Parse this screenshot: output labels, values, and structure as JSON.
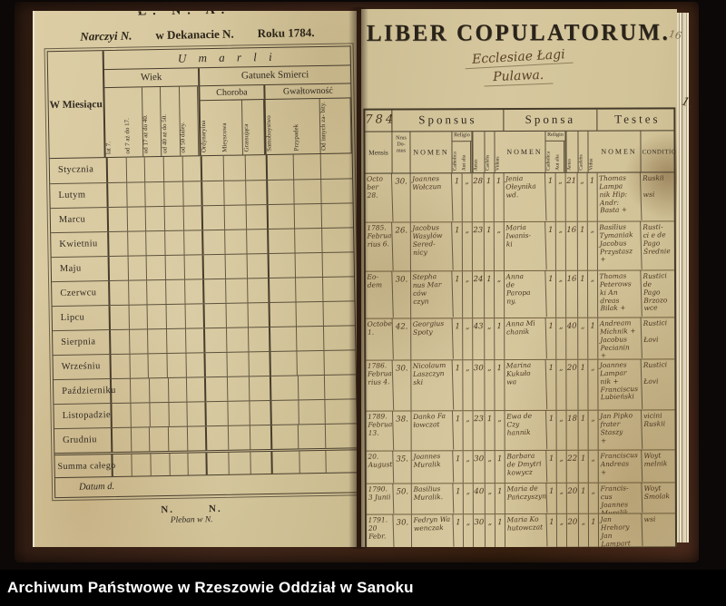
{
  "archive_bar": {
    "text": "Archiwum Państwowe w Rzeszowie Oddział w Sanoku"
  },
  "left_page": {
    "cropped_top_text": "Ł. N. A.",
    "header_line": {
      "parish": "Narczyi N.",
      "deanery": "w Dekanacie N.",
      "year": "Roku 1784."
    },
    "section_title": "U m a r l i",
    "month_column_header": "W Miesiącu",
    "age_group_label": "Wiek",
    "age_columns": [
      "lat 7.",
      "od 7 aż do 17.",
      "od 17 aż do 40.",
      "od 40 aż do 50.",
      "od 50 daley."
    ],
    "death_group_label": "Gatunek Smierci",
    "disease_label": "Choroba",
    "disease_columns": [
      "Ordynaryina",
      "Mieyscowa",
      "Grassująca"
    ],
    "violence_label": "Gwałtowność",
    "violence_columns": [
      "Samoboystwo",
      "Przypadek",
      "Od innych za- bity."
    ],
    "month_rows": [
      "Stycznia",
      "Lutym",
      "Marcu",
      "Kwietniu",
      "Maju",
      "Czerwcu",
      "Lipcu",
      "Sierpnia",
      "Wrześniu",
      "Październiku",
      "Listopadzie",
      "Grudniu",
      "Summa całego"
    ],
    "datum_label": "Datum d.",
    "signature_names": "N.        N.",
    "signature_title": "Pleban w N."
  },
  "right_page": {
    "title": "LIBER COPULATORUM.",
    "handwritten_parish": [
      "Ecclesiae Łagi",
      "Pulawa."
    ],
    "page_number": "16",
    "margin_mark": "1.",
    "year_cell": "784",
    "group_headers": [
      "Sponsus",
      "Sponsa",
      "Testes"
    ],
    "col_mensis": "Mensis",
    "col_domus": "Nrus\nDo-\nmus",
    "col_nomen": "NOMEN",
    "col_religio": "Religio",
    "col_catholica": "Catholica",
    "col_aut_alia": "Aut alia",
    "col_aetas": "Aetas",
    "col_caelebs": "Caelebs",
    "col_viduus": "Viduus",
    "col_vidua": "Vidua",
    "col_conditio": "CONDITIO",
    "entries": [
      {
        "mensis": "Octo\nber\n28.",
        "domus": "30.",
        "sp_nomen": "Joannes\nWołczun",
        "sp_cath": "1",
        "sp_alia": "„",
        "sp_aetas": "28",
        "sp_cael": "1",
        "sp_vid": "1",
        "spa_nomen": "Jenia\nOłeynika\nwd.",
        "spa_cath": "1",
        "spa_alia": "„",
        "spa_aetas": "21",
        "spa_cael": "„",
        "spa_vid": "1",
        "testes": "Thomas\nLampa\nnik Hip:\nAndr:\nBasta +",
        "conditio": "Ruskii\n\nwsi"
      },
      {
        "mensis": "1785.\nFebrua\nrius 6.",
        "domus": "26.",
        "sp_nomen": "Jacobus\nWasylów\nSered-\nnicy",
        "sp_cath": "1",
        "sp_alia": "„",
        "sp_aetas": "23",
        "sp_cael": "1",
        "sp_vid": "„",
        "spa_nomen": "Maria\nIwanis-\nki",
        "spa_cath": "1",
        "spa_alia": "„",
        "spa_aetas": "16",
        "spa_cael": "1",
        "spa_vid": "„",
        "testes": "Basilius\nTymaniak\nJacobus\nPrzystasz\n+",
        "conditio": "Rusti-\nci e de\nPago\nŚrednie"
      },
      {
        "mensis": "Eo-\ndem",
        "domus": "30.",
        "sp_nomen": "Stepha\nnus Mar\nców\nczyn",
        "sp_cath": "1",
        "sp_alia": "„",
        "sp_aetas": "24",
        "sp_cael": "1",
        "sp_vid": "„",
        "spa_nomen": "Anna\nde\nParopa\nny.",
        "spa_cath": "1",
        "spa_alia": "„",
        "spa_aetas": "16",
        "spa_cael": "1",
        "spa_vid": "„",
        "testes": "Thomas\nPeterows\nki An\ndreas\nBilak +",
        "conditio": "Rustici\nde\nPago\nBrzozo\nwce"
      },
      {
        "mensis": "October\n1.",
        "domus": "42.",
        "sp_nomen": "Georgius\nSpoty",
        "sp_cath": "1",
        "sp_alia": "„",
        "sp_aetas": "43",
        "sp_cael": "„",
        "sp_vid": "1",
        "spa_nomen": "Anna Mi\nchanik",
        "spa_cath": "1",
        "spa_alia": "„",
        "spa_aetas": "40",
        "spa_cael": "„",
        "spa_vid": "1",
        "testes": "Andream\nMichnik +\nJacobus\nPecianin\n+",
        "conditio": "Rustici\n\nŁovi"
      },
      {
        "mensis": "1786.\nFebrua\nrius 4.",
        "domus": "30.",
        "sp_nomen": "Nicolaum\nLaszczyn\nski",
        "sp_cath": "1",
        "sp_alia": "„",
        "sp_aetas": "30",
        "sp_cael": "„",
        "sp_vid": "1",
        "spa_nomen": "Marina\nKukuło\nwa",
        "spa_cath": "1",
        "spa_alia": "„",
        "spa_aetas": "20",
        "spa_cael": "1",
        "spa_vid": "„",
        "testes": "Joannes\nLampar\nnik +\nFranciscus\nLubieński",
        "conditio": "Rustici\n\nŁovi"
      },
      {
        "mensis": "1789.\nFebrua.\n13.",
        "domus": "38.",
        "sp_nomen": "Danko Fa\nłowczat",
        "sp_cath": "1",
        "sp_alia": "„",
        "sp_aetas": "23",
        "sp_cael": "1",
        "sp_vid": "„",
        "spa_nomen": "Ewa de Czy\nhannik",
        "spa_cath": "1",
        "spa_alia": "„",
        "spa_aetas": "18",
        "spa_cael": "1",
        "spa_vid": "„",
        "testes": "Jan Pipko\nfrater Staszy\n+",
        "conditio": "vicini\nRuskii"
      },
      {
        "mensis": "20.\nAugusti",
        "domus": "35.",
        "sp_nomen": "Joannes\nMuralik",
        "sp_cath": "1",
        "sp_alia": "„",
        "sp_aetas": "30",
        "sp_cael": "„",
        "sp_vid": "1",
        "spa_nomen": "Barbara\nde Dmytri\nkowycz",
        "spa_cath": "1",
        "spa_alia": "„",
        "spa_aetas": "22",
        "spa_cael": "1",
        "spa_vid": "„",
        "testes": "Franciscus\nAndreas\n+",
        "conditio": "Woyt\nmelnik"
      },
      {
        "mensis": "1790.\n3 Junii",
        "domus": "50.",
        "sp_nomen": "Basilius\nMuralik.",
        "sp_cath": "1",
        "sp_alia": "„",
        "sp_aetas": "40",
        "sp_cael": "„",
        "sp_vid": "1",
        "spa_nomen": "Maria de\nPańczyszyn",
        "spa_cath": "1",
        "spa_alia": "„",
        "spa_aetas": "20",
        "spa_cael": "1",
        "spa_vid": "„",
        "testes": "Francis-\ncus\nJoannes\nMuralik",
        "conditio": "Woyt\nSmolak"
      },
      {
        "mensis": "1791.\n20 Febr.",
        "domus": "30.",
        "sp_nomen": "Fedryn Wa\nwenczak",
        "sp_cath": "1",
        "sp_alia": "„",
        "sp_aetas": "30",
        "sp_cael": "„",
        "sp_vid": "1",
        "spa_nomen": "Maria Ko\nhutowczat",
        "spa_cath": "1",
        "spa_alia": "„",
        "spa_aetas": "20",
        "spa_cael": "„",
        "spa_vid": "1",
        "testes": "Jan Hrehory\nJan Lampart",
        "conditio": "wsi"
      }
    ]
  }
}
